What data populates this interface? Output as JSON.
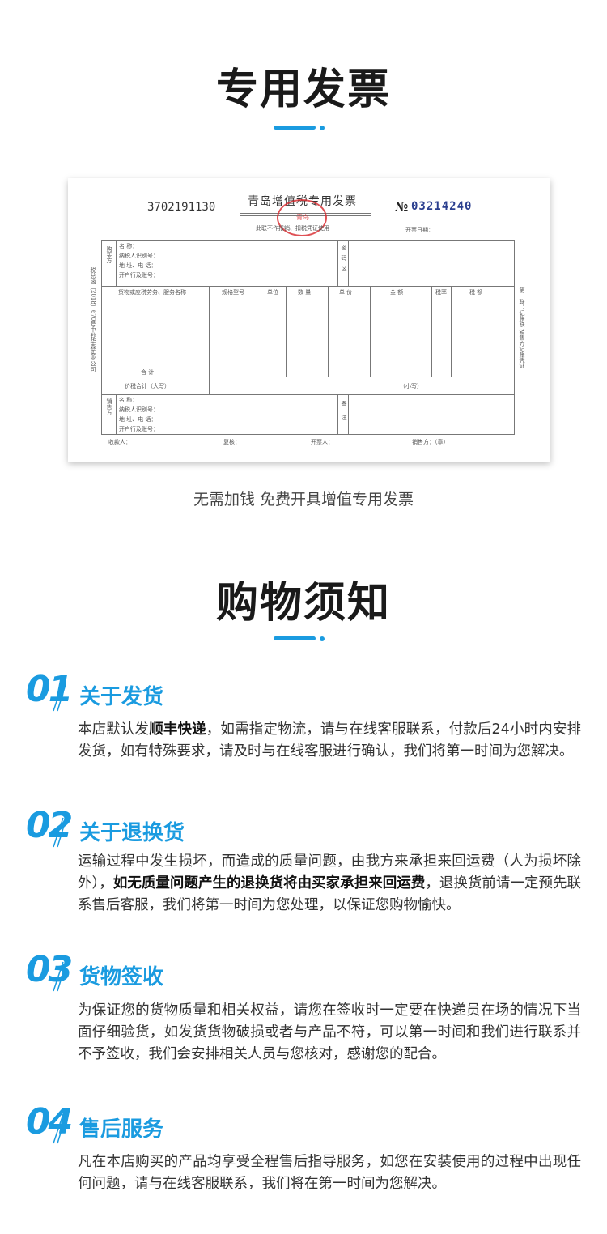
{
  "invoice_section": {
    "title": "专用发票",
    "caption": "无需加钱  免费开具增值专用发票"
  },
  "invoice": {
    "code": "3702191130",
    "name": "青岛增值税专用发票",
    "no_symbol": "№",
    "number": "03214240",
    "subtitle": "此联不作报销、扣税凭证使用",
    "date_label": "开票日期：",
    "stamp_text": "青岛",
    "side_left": "税总函〔2018〕670号中钞华森实业公司",
    "side_right": "第一联：记账联  销售方记账凭证",
    "buyer_label": "购买方",
    "seller_label": "销售方",
    "party_fields": [
      "名      称：",
      "纳税人识别号：",
      "地 址、电 话：",
      "开户行及账号："
    ],
    "password_label": "密码区",
    "remark_label": "备注",
    "columns": [
      "货物或应税劳务、服务名称",
      "规格型号",
      "单位",
      "数 量",
      "单 价",
      "金   额",
      "税率",
      "税   额"
    ],
    "subtotal": "合          计",
    "total_upper": "价税合计（大写）",
    "total_lower": "（小写）",
    "footer": [
      "收款人：",
      "复核：",
      "开票人：",
      "销售方：（章）"
    ]
  },
  "notice_section": {
    "title": "购物须知"
  },
  "sections": [
    {
      "num": "01",
      "title": "关于发货",
      "pre": "本店默认发",
      "bold": "顺丰快递",
      "post": "，如需指定物流，请与在线客服联系，付款后24小时内安排发货，如有特殊要求，请及时与在线客服进行确认，我们将第一时间为您解决。"
    },
    {
      "num": "02",
      "title": "关于退换货",
      "pre": "运输过程中发生损坏，而造成的质量问题，由我方来承担来回运费（人为损坏除外），",
      "bold": "如无质量问题产生的退换货将由买家承担来回运费",
      "post": "，退换货前请一定预先联系售后客服，我们将第一时间为您处理，以保证您购物愉快。"
    },
    {
      "num": "03",
      "title": "货物签收",
      "pre": "为保证您的货物质量和相关权益，请您在签收时一定要在快递员在场的情况下当面仔细验货，如发货货物破损或者与产品不符，可以第一时间和我们进行联系并不予签收，我们会安排相关人员与您核对，感谢您的配合。",
      "bold": "",
      "post": ""
    },
    {
      "num": "04",
      "title": "售后服务",
      "pre": "凡在本店购买的产品均享受全程售后指导服务，如您在安装使用的过程中出现任何问题，请与在线客服联系，我们将在第一时间为您解决。",
      "bold": "",
      "post": ""
    }
  ],
  "colors": {
    "accent": "#1a9be0",
    "stamp": "#d8262b",
    "invoice_number": "#2b3f8f"
  }
}
